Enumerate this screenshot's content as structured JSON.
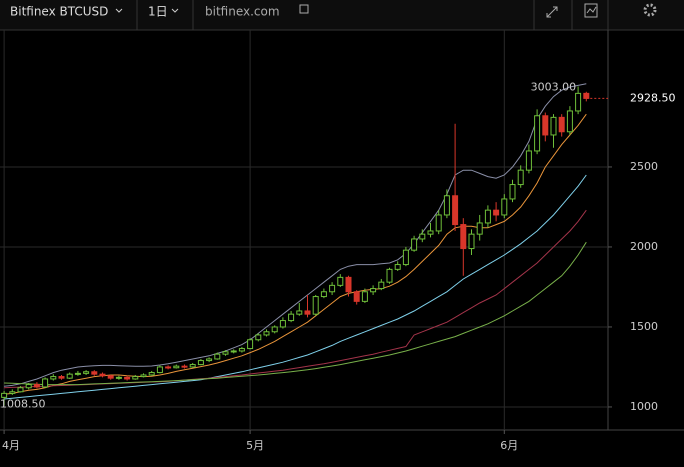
{
  "toolbar": {
    "symbol": "Bitfinex BTCUSD",
    "interval": "1日",
    "site": "bitfinex.com"
  },
  "chart_data": {
    "type": "candlestick",
    "categories": [
      "4月",
      null,
      null,
      null,
      null,
      null,
      null,
      null,
      null,
      null,
      null,
      null,
      null,
      null,
      null,
      null,
      null,
      null,
      null,
      null,
      null,
      null,
      null,
      null,
      null,
      null,
      null,
      null,
      null,
      null,
      "5月",
      null,
      null,
      null,
      null,
      null,
      null,
      null,
      null,
      null,
      null,
      null,
      null,
      null,
      null,
      null,
      null,
      null,
      null,
      null,
      null,
      null,
      null,
      null,
      null,
      null,
      null,
      null,
      null,
      null,
      null,
      "6月",
      null,
      null,
      null,
      null,
      null,
      null,
      null,
      null,
      null,
      null
    ],
    "open": [
      1060,
      1085,
      1095,
      1120,
      1140,
      1125,
      1175,
      1190,
      1180,
      1205,
      1210,
      1220,
      1205,
      1195,
      1180,
      1185,
      1175,
      1190,
      1200,
      1215,
      1250,
      1245,
      1255,
      1250,
      1265,
      1290,
      1300,
      1330,
      1345,
      1350,
      1365,
      1420,
      1450,
      1470,
      1500,
      1540,
      1580,
      1600,
      1580,
      1690,
      1720,
      1760,
      1810,
      1720,
      1660,
      1720,
      1740,
      1780,
      1860,
      1890,
      1980,
      2050,
      2080,
      2100,
      2200,
      2320,
      2140,
      1990,
      2080,
      2150,
      2230,
      2200,
      2300,
      2390,
      2480,
      2600,
      2820,
      2700,
      2810,
      2720,
      2850,
      2960
    ],
    "high": [
      1100,
      1110,
      1130,
      1150,
      1155,
      1185,
      1205,
      1200,
      1215,
      1225,
      1230,
      1230,
      1215,
      1200,
      1195,
      1195,
      1200,
      1210,
      1225,
      1260,
      1260,
      1265,
      1265,
      1275,
      1300,
      1310,
      1340,
      1355,
      1360,
      1375,
      1430,
      1460,
      1485,
      1510,
      1560,
      1600,
      1650,
      1700,
      1700,
      1740,
      1780,
      1830,
      1820,
      1730,
      1740,
      1760,
      1800,
      1870,
      1910,
      2000,
      2070,
      2110,
      2150,
      2230,
      2360,
      2770,
      2180,
      2110,
      2200,
      2260,
      2280,
      2330,
      2420,
      2510,
      2640,
      2860,
      2840,
      2830,
      2830,
      2880,
      3003,
      2970
    ],
    "low": [
      1008.5,
      1075,
      1090,
      1110,
      1115,
      1120,
      1165,
      1170,
      1175,
      1195,
      1200,
      1195,
      1185,
      1170,
      1170,
      1165,
      1170,
      1185,
      1195,
      1210,
      1235,
      1240,
      1240,
      1245,
      1260,
      1280,
      1295,
      1320,
      1335,
      1340,
      1360,
      1410,
      1440,
      1460,
      1490,
      1530,
      1570,
      1560,
      1570,
      1680,
      1700,
      1750,
      1690,
      1640,
      1650,
      1700,
      1730,
      1770,
      1850,
      1880,
      1970,
      2030,
      2060,
      2080,
      2180,
      2100,
      1820,
      1950,
      2040,
      2120,
      2160,
      2180,
      2280,
      2370,
      2460,
      2580,
      2660,
      2620,
      2690,
      2700,
      2830,
      2910
    ],
    "close": [
      1085,
      1095,
      1120,
      1140,
      1125,
      1175,
      1190,
      1180,
      1205,
      1210,
      1220,
      1205,
      1195,
      1180,
      1185,
      1175,
      1190,
      1200,
      1215,
      1250,
      1245,
      1255,
      1250,
      1265,
      1290,
      1300,
      1330,
      1345,
      1350,
      1365,
      1420,
      1450,
      1470,
      1500,
      1540,
      1580,
      1600,
      1580,
      1690,
      1720,
      1760,
      1810,
      1720,
      1660,
      1720,
      1740,
      1780,
      1860,
      1890,
      1980,
      2050,
      2080,
      2100,
      2200,
      2320,
      2140,
      1990,
      2080,
      2150,
      2230,
      2200,
      2300,
      2390,
      2480,
      2600,
      2820,
      2700,
      2810,
      2720,
      2850,
      2960,
      2928.5
    ],
    "up_color": "#6fbf3a",
    "down_color": "#d8362a",
    "series": [
      {
        "color": "#8a8fa8",
        "values": [
          1130,
          1135,
          1145,
          1160,
          1175,
          1195,
          1215,
          1230,
          1240,
          1250,
          1255,
          1258,
          1260,
          1260,
          1258,
          1256,
          1255,
          1255,
          1256,
          1262,
          1270,
          1280,
          1290,
          1300,
          1310,
          1320,
          1335,
          1350,
          1370,
          1390,
          1420,
          1460,
          1500,
          1540,
          1580,
          1620,
          1660,
          1700,
          1740,
          1780,
          1820,
          1860,
          1880,
          1890,
          1890,
          1890,
          1895,
          1900,
          1920,
          1960,
          2020,
          2090,
          2160,
          2230,
          2330,
          2450,
          2480,
          2480,
          2460,
          2440,
          2430,
          2450,
          2500,
          2570,
          2660,
          2800,
          2880,
          2940,
          2980,
          3000,
          3010,
          3020
        ]
      },
      {
        "color": "#e8943a",
        "values": [
          1080,
          1085,
          1095,
          1105,
          1110,
          1120,
          1135,
          1145,
          1160,
          1170,
          1180,
          1190,
          1195,
          1200,
          1200,
          1195,
          1192,
          1190,
          1192,
          1200,
          1210,
          1222,
          1232,
          1242,
          1252,
          1262,
          1275,
          1290,
          1305,
          1320,
          1340,
          1360,
          1385,
          1410,
          1440,
          1470,
          1500,
          1530,
          1570,
          1610,
          1650,
          1690,
          1710,
          1720,
          1730,
          1735,
          1740,
          1755,
          1780,
          1815,
          1860,
          1910,
          1960,
          2010,
          2080,
          2120,
          2130,
          2130,
          2120,
          2120,
          2140,
          2160,
          2200,
          2250,
          2320,
          2400,
          2500,
          2570,
          2640,
          2700,
          2760,
          2830
        ]
      },
      {
        "color": "#7fd0ea",
        "values": [
          1050,
          1055,
          1060,
          1065,
          1070,
          1075,
          1080,
          1085,
          1090,
          1095,
          1100,
          1105,
          1110,
          1115,
          1120,
          1125,
          1130,
          1135,
          1140,
          1145,
          1150,
          1155,
          1160,
          1165,
          1170,
          1180,
          1190,
          1200,
          1210,
          1220,
          1232,
          1244,
          1256,
          1268,
          1280,
          1295,
          1310,
          1325,
          1345,
          1365,
          1385,
          1410,
          1430,
          1450,
          1470,
          1490,
          1510,
          1530,
          1550,
          1575,
          1600,
          1630,
          1660,
          1690,
          1720,
          1760,
          1800,
          1830,
          1860,
          1890,
          1920,
          1950,
          1985,
          2020,
          2060,
          2100,
          2150,
          2200,
          2260,
          2320,
          2380,
          2450
        ]
      },
      {
        "color": "#a3344a",
        "values": [
          1120,
          1122,
          1124,
          1126,
          1128,
          1130,
          1132,
          1134,
          1136,
          1138,
          1140,
          1142,
          1144,
          1146,
          1148,
          1150,
          1152,
          1154,
          1156,
          1158,
          1160,
          1164,
          1168,
          1172,
          1176,
          1180,
          1185,
          1190,
          1195,
          1200,
          1206,
          1212,
          1218,
          1224,
          1230,
          1238,
          1246,
          1254,
          1262,
          1270,
          1280,
          1290,
          1300,
          1310,
          1320,
          1330,
          1342,
          1354,
          1366,
          1378,
          1450,
          1470,
          1490,
          1510,
          1530,
          1560,
          1590,
          1620,
          1650,
          1675,
          1700,
          1740,
          1780,
          1820,
          1860,
          1900,
          1950,
          2000,
          2050,
          2100,
          2160,
          2230
        ]
      },
      {
        "color": "#78b04a",
        "values": [
          1150,
          1148,
          1146,
          1144,
          1142,
          1140,
          1140,
          1140,
          1140,
          1140,
          1142,
          1144,
          1146,
          1148,
          1150,
          1152,
          1154,
          1156,
          1158,
          1160,
          1162,
          1165,
          1168,
          1171,
          1174,
          1177,
          1180,
          1184,
          1188,
          1192,
          1196,
          1200,
          1205,
          1210,
          1215,
          1220,
          1226,
          1232,
          1240,
          1248,
          1256,
          1265,
          1275,
          1285,
          1295,
          1305,
          1315,
          1325,
          1337,
          1350,
          1365,
          1380,
          1395,
          1410,
          1425,
          1440,
          1460,
          1480,
          1500,
          1520,
          1545,
          1570,
          1600,
          1630,
          1660,
          1700,
          1740,
          1780,
          1820,
          1880,
          1950,
          2030
        ]
      }
    ],
    "ylim": [
      856,
      3356
    ],
    "yticks": [
      1000,
      1500,
      2000,
      2500
    ],
    "grid": true,
    "last_price": {
      "value": 2928.5,
      "label": "2928.50"
    },
    "max_label": {
      "value": 3003,
      "label": "3003.00"
    },
    "min_label": {
      "value": 1008.5,
      "label": "1008.50"
    }
  }
}
